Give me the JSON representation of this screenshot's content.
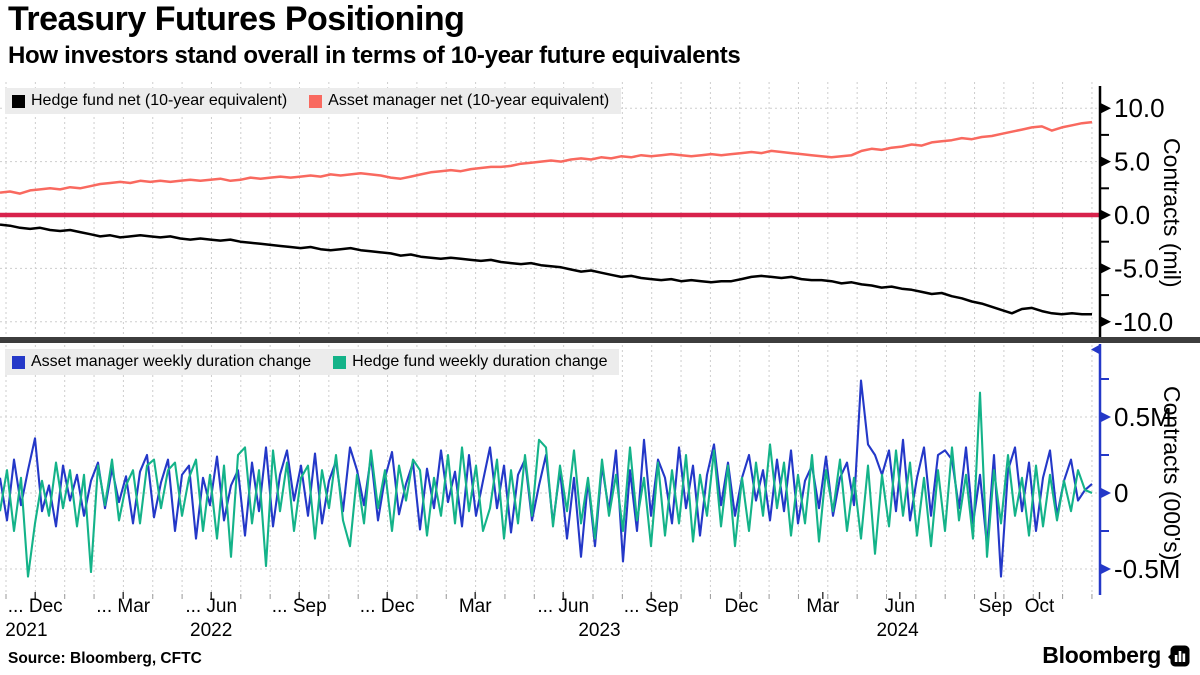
{
  "header": {
    "title": "Treasury Futures Positioning",
    "subtitle": "How investors stand overall in terms of 10-year future equivalents"
  },
  "source": "Source: Bloomberg, CFTC",
  "brand": {
    "name": "Bloomberg",
    "icon": "bloomberg-terminal-icon"
  },
  "colors": {
    "hedge_fund_net": "#000000",
    "asset_manager_net": "#f9695f",
    "zero_line": "#d8224c",
    "asset_manager_duration": "#2438c8",
    "hedge_fund_duration": "#14b389",
    "grid": "#cdcdcd",
    "separator": "#3d3d3d",
    "legend_bg": "#ececec",
    "axis_top": "#000000",
    "axis_bottom": "#2438c8"
  },
  "x_axis": {
    "labels": [
      {
        "text": "... Dec",
        "f": 0.032
      },
      {
        "text": "... Mar",
        "f": 0.112
      },
      {
        "text": "... Jun",
        "f": 0.192
      },
      {
        "text": "... Sep",
        "f": 0.272
      },
      {
        "text": "... Dec",
        "f": 0.352
      },
      {
        "text": "Mar",
        "f": 0.432
      },
      {
        "text": "... Jun",
        "f": 0.512
      },
      {
        "text": "... Sep",
        "f": 0.592
      },
      {
        "text": "Dec",
        "f": 0.674
      },
      {
        "text": "Mar",
        "f": 0.748
      },
      {
        "text": "Jun",
        "f": 0.818
      },
      {
        "text": "Sep",
        "f": 0.905
      },
      {
        "text": "Oct",
        "f": 0.945
      }
    ],
    "years": [
      {
        "text": "2021",
        "f": 0.024
      },
      {
        "text": "2022",
        "f": 0.192
      },
      {
        "text": "2023",
        "f": 0.545
      },
      {
        "text": "2024",
        "f": 0.816
      }
    ],
    "range": "Oct 2021 - Oct 2024"
  },
  "chart_data": [
    {
      "type": "line",
      "ylabel": "Contracts (mil)",
      "y_ticks": [
        10.0,
        5.0,
        0.0,
        -5.0,
        -10.0
      ],
      "y_tick_labels": [
        "10.0",
        "5.0",
        "0.0",
        "-5.0",
        "-10.0"
      ],
      "ylim": [
        -11.4,
        12.6
      ],
      "grid": true,
      "zero_line": true,
      "legend_position": "top-left",
      "series": [
        {
          "name": "Hedge fund net (10-year equivalent)",
          "color": "#000000",
          "values": [
            -0.9,
            -1.0,
            -1.2,
            -1.3,
            -1.2,
            -1.4,
            -1.5,
            -1.4,
            -1.6,
            -1.8,
            -2.0,
            -1.9,
            -2.1,
            -2.0,
            -1.9,
            -2.0,
            -2.1,
            -2.0,
            -2.2,
            -2.3,
            -2.2,
            -2.3,
            -2.4,
            -2.3,
            -2.5,
            -2.6,
            -2.7,
            -2.8,
            -2.9,
            -3.0,
            -3.1,
            -3.0,
            -3.2,
            -3.3,
            -3.2,
            -3.1,
            -3.3,
            -3.4,
            -3.5,
            -3.6,
            -3.8,
            -3.7,
            -3.9,
            -4.0,
            -4.1,
            -4.0,
            -4.1,
            -4.2,
            -4.3,
            -4.2,
            -4.4,
            -4.5,
            -4.6,
            -4.5,
            -4.7,
            -4.8,
            -4.9,
            -5.1,
            -5.3,
            -5.2,
            -5.4,
            -5.6,
            -5.8,
            -5.7,
            -5.9,
            -6.0,
            -6.1,
            -6.0,
            -6.2,
            -6.1,
            -6.2,
            -6.3,
            -6.2,
            -6.2,
            -6.0,
            -5.8,
            -5.7,
            -5.8,
            -5.9,
            -5.8,
            -6.0,
            -6.1,
            -6.1,
            -6.2,
            -6.4,
            -6.3,
            -6.5,
            -6.6,
            -6.8,
            -6.7,
            -6.9,
            -7.0,
            -7.2,
            -7.4,
            -7.3,
            -7.6,
            -7.8,
            -8.1,
            -8.3,
            -8.6,
            -8.9,
            -9.2,
            -8.8,
            -8.7,
            -9.0,
            -9.2,
            -9.3,
            -9.2,
            -9.3,
            -9.3
          ]
        },
        {
          "name": "Asset manager net (10-year equivalent)",
          "color": "#f9695f",
          "values": [
            2.1,
            2.2,
            2.0,
            2.3,
            2.4,
            2.5,
            2.4,
            2.6,
            2.5,
            2.7,
            2.9,
            3.0,
            3.1,
            3.0,
            3.2,
            3.1,
            3.2,
            3.1,
            3.2,
            3.3,
            3.2,
            3.3,
            3.4,
            3.2,
            3.3,
            3.5,
            3.4,
            3.5,
            3.6,
            3.5,
            3.6,
            3.7,
            3.6,
            3.8,
            3.7,
            3.8,
            3.9,
            3.8,
            3.7,
            3.5,
            3.4,
            3.6,
            3.8,
            4.0,
            4.1,
            4.2,
            4.1,
            4.3,
            4.4,
            4.5,
            4.5,
            4.6,
            4.8,
            4.9,
            5.0,
            5.1,
            5.0,
            5.2,
            5.3,
            5.2,
            5.4,
            5.3,
            5.5,
            5.4,
            5.6,
            5.5,
            5.6,
            5.7,
            5.6,
            5.5,
            5.6,
            5.7,
            5.6,
            5.7,
            5.8,
            5.9,
            5.8,
            6.0,
            5.9,
            5.8,
            5.7,
            5.6,
            5.5,
            5.4,
            5.5,
            5.6,
            6.0,
            6.2,
            6.1,
            6.3,
            6.4,
            6.6,
            6.5,
            6.8,
            6.9,
            7.0,
            7.2,
            7.1,
            7.3,
            7.4,
            7.6,
            7.8,
            8.0,
            8.2,
            8.3,
            7.9,
            8.2,
            8.4,
            8.6,
            8.7
          ]
        }
      ]
    },
    {
      "type": "line",
      "ylabel": "Contracts (000's)",
      "y_ticks": [
        0.5,
        0,
        -0.5
      ],
      "y_tick_labels": [
        "0.5M",
        "0",
        "-0.5M"
      ],
      "ylim": [
        -0.7,
        1.0
      ],
      "grid": true,
      "legend_position": "top-left",
      "series": [
        {
          "name": "Asset manager weekly duration change",
          "color": "#2438c8",
          "values": [
            0.1,
            -0.18,
            0.22,
            -0.08,
            0.15,
            0.36,
            -0.12,
            0.05,
            -0.22,
            0.18,
            -0.05,
            0.12,
            -0.15,
            0.08,
            0.2,
            -0.1,
            0.16,
            -0.06,
            0.11,
            -0.2,
            0.14,
            0.25,
            -0.16,
            0.07,
            0.22,
            -0.25,
            0.12,
            0.18,
            -0.3,
            0.1,
            -0.08,
            0.24,
            -0.18,
            0.05,
            0.15,
            -0.28,
            0.2,
            -0.12,
            0.3,
            -0.22,
            0.12,
            0.28,
            -0.05,
            0.18,
            -0.15,
            0.26,
            -0.2,
            0.08,
            0.21,
            -0.12,
            0.3,
            0.15,
            -0.08,
            0.24,
            -0.18,
            0.1,
            0.27,
            -0.14,
            0.06,
            0.2,
            -0.24,
            0.16,
            -0.1,
            0.28,
            -0.06,
            0.14,
            -0.22,
            0.25,
            -0.15,
            0.08,
            0.3,
            -0.1,
            0.18,
            -0.26,
            0.12,
            0.22,
            -0.18,
            0.05,
            0.25,
            -0.2,
            0.15,
            -0.3,
            0.1,
            -0.42,
            0.08,
            -0.35,
            0.18,
            -0.12,
            0.28,
            -0.45,
            0.15,
            -0.25,
            0.35,
            -0.15,
            0.22,
            0.1,
            -0.2,
            0.3,
            -0.1,
            0.18,
            -0.28,
            0.12,
            0.32,
            -0.08,
            0.2,
            -0.15,
            0.1,
            0.25,
            -0.05,
            0.15,
            -0.18,
            0.22,
            -0.12,
            0.28,
            -0.2,
            0.08,
            0.18,
            -0.1,
            0.24,
            -0.15,
            0.1,
            0.2,
            -0.08,
            0.74,
            0.32,
            0.25,
            0.12,
            0.28,
            -0.12,
            0.35,
            -0.18,
            0.1,
            0.3,
            -0.15,
            0.25,
            0.28,
            0.22,
            -0.1,
            0.3,
            -0.2,
            0.12,
            -0.35,
            0.25,
            -0.55,
            0.15,
            0.3,
            -0.12,
            0.2,
            -0.25,
            0.1,
            0.28,
            -0.15,
            0.08,
            0.22,
            -0.05,
            0.02,
            0.06
          ]
        },
        {
          "name": "Hedge fund weekly duration change",
          "color": "#14b389",
          "values": [
            -0.12,
            0.15,
            -0.25,
            0.1,
            -0.55,
            -0.2,
            0.08,
            -0.15,
            0.2,
            -0.1,
            0.15,
            -0.22,
            0.12,
            -0.52,
            0.18,
            -0.08,
            0.22,
            -0.18,
            0.05,
            0.15,
            -0.2,
            0.18,
            0.22,
            -0.1,
            0.15,
            0.2,
            -0.15,
            0.1,
            0.22,
            -0.25,
            0.12,
            -0.3,
            0.18,
            -0.42,
            0.25,
            0.3,
            -0.2,
            0.15,
            -0.48,
            0.28,
            -0.12,
            0.2,
            -0.25,
            0.1,
            0.18,
            -0.3,
            0.15,
            -0.1,
            0.25,
            -0.18,
            -0.35,
            0.12,
            -0.2,
            0.28,
            -0.1,
            0.15,
            -0.25,
            0.18,
            -0.05,
            0.22,
            0.15,
            -0.28,
            0.1,
            -0.15,
            0.25,
            -0.2,
            0.3,
            -0.12,
            0.18,
            -0.25,
            -0.1,
            0.22,
            -0.3,
            0.15,
            -0.2,
            0.25,
            -0.15,
            0.35,
            0.3,
            -0.22,
            0.18,
            -0.12,
            0.28,
            -0.2,
            0.1,
            -0.3,
            0.22,
            -0.15,
            0.12,
            -0.25,
            0.3,
            -0.18,
            0.1,
            -0.35,
            0.2,
            -0.28,
            0.15,
            -0.2,
            0.25,
            -0.32,
            0.12,
            -0.15,
            0.28,
            -0.22,
            0.18,
            -0.35,
            0.1,
            -0.25,
            0.2,
            -0.15,
            0.32,
            -0.1,
            0.2,
            -0.28,
            0.12,
            -0.2,
            0.25,
            -0.32,
            0.15,
            -0.12,
            0.22,
            -0.25,
            0.1,
            -0.3,
            0.18,
            -0.4,
            0.12,
            -0.22,
            0.28,
            -0.15,
            0.2,
            -0.28,
            0.1,
            -0.35,
            0.15,
            -0.25,
            0.3,
            -0.18,
            0.12,
            -0.3,
            0.66,
            -0.42,
            0.15,
            -0.2,
            0.25,
            -0.15,
            0.1,
            -0.28,
            0.18,
            -0.22,
            0.12,
            -0.18,
            0.08,
            -0.12,
            0.15,
            0.02,
            0.0
          ]
        }
      ]
    }
  ]
}
